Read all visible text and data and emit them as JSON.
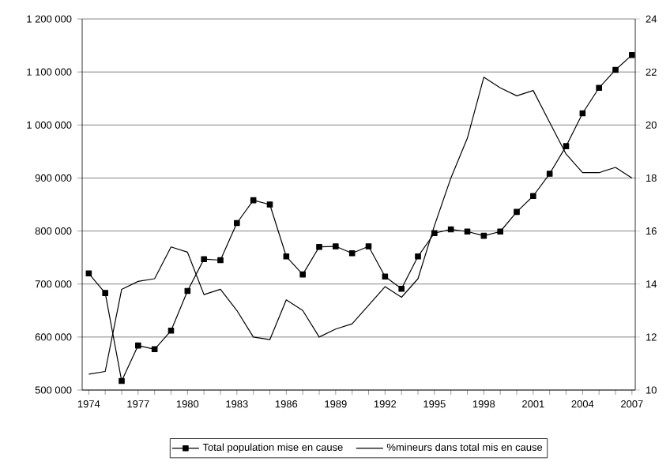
{
  "chart_data": {
    "type": "line",
    "x": [
      1974,
      1975,
      1976,
      1977,
      1978,
      1979,
      1980,
      1981,
      1982,
      1983,
      1984,
      1985,
      1986,
      1987,
      1988,
      1989,
      1990,
      1991,
      1992,
      1993,
      1994,
      1995,
      1996,
      1997,
      1998,
      1999,
      2000,
      2001,
      2002,
      2003,
      2004,
      2005,
      2006,
      2007
    ],
    "series": [
      {
        "name": "Total population mise en cause",
        "color": "#000000",
        "marker": "square",
        "values": [
          720000,
          683000,
          517000,
          584000,
          577000,
          612000,
          687000,
          747000,
          745000,
          815000,
          858000,
          850000,
          752000,
          718000,
          770000,
          771000,
          758000,
          771000,
          714000,
          691000,
          752000,
          796000,
          803000,
          799000,
          791000,
          799000,
          836000,
          866000,
          908000,
          960000,
          1022000,
          1070000,
          1104000,
          1132000
        ]
      },
      {
        "name": "%mineurs dans total mis en cause",
        "color": "#000000",
        "marker": "none",
        "axis": "y2",
        "values": [
          10.6,
          10.7,
          13.8,
          14.1,
          14.2,
          15.4,
          15.2,
          13.6,
          13.8,
          13.0,
          12.0,
          11.9,
          13.4,
          13.0,
          12.0,
          12.3,
          12.5,
          13.2,
          13.9,
          13.5,
          14.2,
          16.2,
          18.0,
          19.5,
          21.8,
          21.4,
          21.1,
          21.3,
          20.1,
          18.9,
          18.2,
          18.2,
          18.4,
          18.0
        ]
      }
    ],
    "xlim": [
      1973.6,
      2007.2
    ],
    "xticks": [
      {
        "value": 1974,
        "label": "1974"
      },
      {
        "value": 1975,
        "label": null
      },
      {
        "value": 1976,
        "label": null
      },
      {
        "value": 1977,
        "label": "1977"
      },
      {
        "value": 1978,
        "label": null
      },
      {
        "value": 1979,
        "label": null
      },
      {
        "value": 1980,
        "label": "1980"
      },
      {
        "value": 1981,
        "label": null
      },
      {
        "value": 1982,
        "label": null
      },
      {
        "value": 1983,
        "label": "1983"
      },
      {
        "value": 1984,
        "label": null
      },
      {
        "value": 1985,
        "label": null
      },
      {
        "value": 1986,
        "label": "1986"
      },
      {
        "value": 1987,
        "label": null
      },
      {
        "value": 1988,
        "label": null
      },
      {
        "value": 1989,
        "label": "1989"
      },
      {
        "value": 1990,
        "label": null
      },
      {
        "value": 1991,
        "label": null
      },
      {
        "value": 1992,
        "label": "1992"
      },
      {
        "value": 1993,
        "label": null
      },
      {
        "value": 1994,
        "label": null
      },
      {
        "value": 1995,
        "label": "1995"
      },
      {
        "value": 1996,
        "label": null
      },
      {
        "value": 1997,
        "label": null
      },
      {
        "value": 1998,
        "label": "1998"
      },
      {
        "value": 1999,
        "label": null
      },
      {
        "value": 2000,
        "label": null
      },
      {
        "value": 2001,
        "label": "2001"
      },
      {
        "value": 2002,
        "label": null
      },
      {
        "value": 2003,
        "label": null
      },
      {
        "value": 2004,
        "label": "2004"
      },
      {
        "value": 2005,
        "label": null
      },
      {
        "value": 2006,
        "label": null
      },
      {
        "value": 2007,
        "label": "2007"
      }
    ],
    "ylim": [
      500000,
      1200000
    ],
    "yticks": [
      {
        "value": 500000,
        "label": "500 000"
      },
      {
        "value": 600000,
        "label": "600 000"
      },
      {
        "value": 700000,
        "label": "700 000"
      },
      {
        "value": 800000,
        "label": "800 000"
      },
      {
        "value": 900000,
        "label": "900 000"
      },
      {
        "value": 1000000,
        "label": "1 000 000"
      },
      {
        "value": 1100000,
        "label": "1 100 000"
      },
      {
        "value": 1200000,
        "label": "1 200 000"
      }
    ],
    "y2lim": [
      10,
      24
    ],
    "y2ticks": [
      10,
      12,
      14,
      16,
      18,
      20,
      22,
      24
    ],
    "grid": "y",
    "legend": "bottom"
  }
}
